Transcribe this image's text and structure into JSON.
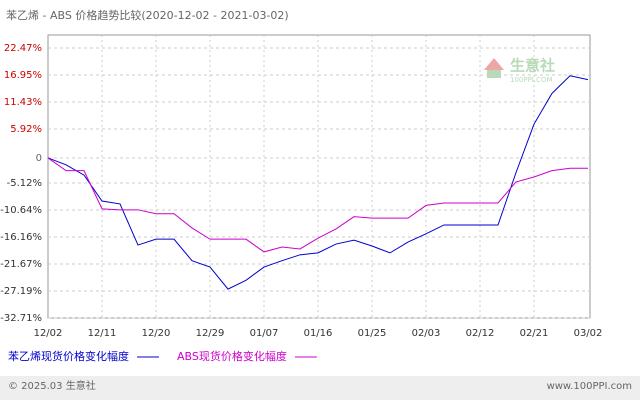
{
  "chart_data": {
    "type": "line",
    "title": "苯乙烯 - ABS 价格趋势比较(2020-12-02 - 2021-03-02)",
    "watermark": "生意社",
    "watermark_sub": "100PPI.COM",
    "footer_left": "© 2025.03 生意社",
    "footer_right": "www.100PPI.com",
    "categories": [
      "12/02",
      null,
      null,
      "12/11",
      null,
      null,
      "12/20",
      null,
      null,
      "12/29",
      null,
      null,
      "01/07",
      null,
      null,
      "01/16",
      null,
      null,
      "01/25",
      null,
      null,
      "02/03",
      null,
      null,
      "02/12",
      null,
      null,
      "02/21",
      null,
      null,
      "03/02"
    ],
    "series": [
      {
        "name": "苯乙烯现货价格变化幅度",
        "color": "#0000cc",
        "values": [
          0,
          -1.4,
          -3.5,
          -8.8,
          -9.4,
          -17.8,
          -16.6,
          -16.6,
          -21,
          -22.3,
          -26.8,
          -25,
          -22.3,
          -21,
          -19.8,
          -19.4,
          -17.6,
          -16.8,
          -18,
          -19.4,
          -17.2,
          -15.5,
          -13.7,
          -13.7,
          -13.7,
          -13.7,
          -3,
          6.9,
          13.2,
          16.8,
          16
        ]
      },
      {
        "name": "ABS现货价格变化幅度",
        "color": "#cc00cc",
        "values": [
          0,
          -2.6,
          -2.6,
          -10.4,
          -10.6,
          -10.6,
          -11.4,
          -11.4,
          -14.3,
          -16.6,
          -16.6,
          -16.6,
          -19.2,
          -18.2,
          -18.6,
          -16.4,
          -14.5,
          -12,
          -12.3,
          -12.3,
          -12.3,
          -9.7,
          -9.2,
          -9.2,
          -9.2,
          -9.2,
          -4.9,
          -3.9,
          -2.6,
          -2.1,
          -2.1
        ]
      }
    ],
    "ylim": [
      -32.71,
      22.47
    ],
    "yticks": [
      {
        "value": 22.47,
        "label": "22.47%"
      },
      {
        "value": 16.95,
        "label": "16.95%"
      },
      {
        "value": 11.43,
        "label": "11.43%"
      },
      {
        "value": 5.92,
        "label": "5.92%"
      },
      0,
      {
        "value": -5.12,
        "label": "-5.12%"
      },
      {
        "value": -10.64,
        "label": "-10.64%"
      },
      {
        "value": -16.16,
        "label": "-16.16%"
      },
      {
        "value": -21.67,
        "label": "-21.67%"
      },
      {
        "value": -27.19,
        "label": "-27.19%"
      },
      {
        "value": -32.71,
        "label": "-32.71%"
      }
    ],
    "grid": true
  }
}
